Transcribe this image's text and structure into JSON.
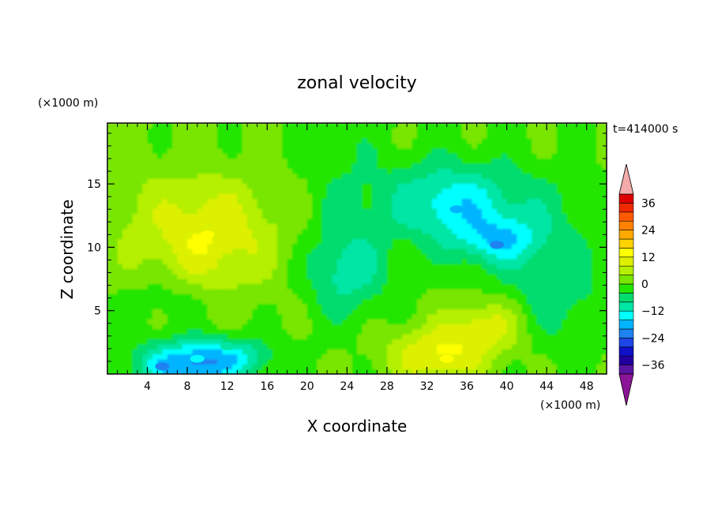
{
  "chart_data": {
    "type": "heatmap",
    "title": "zonal velocity",
    "xlabel": "X coordinate",
    "ylabel": "Z coordinate",
    "x_unit": "(×1000 m)",
    "y_unit": "(×1000 m)",
    "time_label": "t=414000 s",
    "xlim": [
      0,
      50
    ],
    "ylim": [
      0,
      19.8
    ],
    "x_ticks": [
      4,
      8,
      12,
      16,
      20,
      24,
      28,
      32,
      36,
      40,
      44,
      48
    ],
    "y_ticks": [
      5,
      10,
      15
    ],
    "colorbar": {
      "levels": [
        -40,
        -36,
        -32,
        -28,
        -24,
        -20,
        -16,
        -12,
        -8,
        -4,
        0,
        4,
        8,
        12,
        16,
        20,
        24,
        28,
        32,
        36,
        40
      ],
      "tick_labels": [
        36,
        24,
        12,
        0,
        -12,
        -24,
        -36
      ],
      "colors": [
        "#5a14a0",
        "#2200a0",
        "#1010c8",
        "#1e46e6",
        "#1e82f0",
        "#00b4ff",
        "#00ffff",
        "#00e6a5",
        "#00dc6e",
        "#22e600",
        "#78e600",
        "#b4f000",
        "#dcf000",
        "#ffff00",
        "#ffd200",
        "#ffaa00",
        "#ff8200",
        "#ff5a00",
        "#f02800",
        "#dc0000"
      ],
      "under_color": "#8c1496",
      "over_color": "#f4aaaa"
    },
    "features": [
      {
        "x": 10,
        "z": 11,
        "value": 14
      },
      {
        "x": 34,
        "z": 1.2,
        "value": 12
      },
      {
        "x": 38,
        "z": 4,
        "value": 10
      },
      {
        "x": 35,
        "z": 13,
        "value": -18
      },
      {
        "x": 39,
        "z": 10.2,
        "value": -22
      },
      {
        "x": 5.5,
        "z": 0.6,
        "value": -22
      },
      {
        "x": 9,
        "z": 1.2,
        "value": -16
      },
      {
        "x": 12,
        "z": 2.2,
        "value": -10
      }
    ]
  }
}
